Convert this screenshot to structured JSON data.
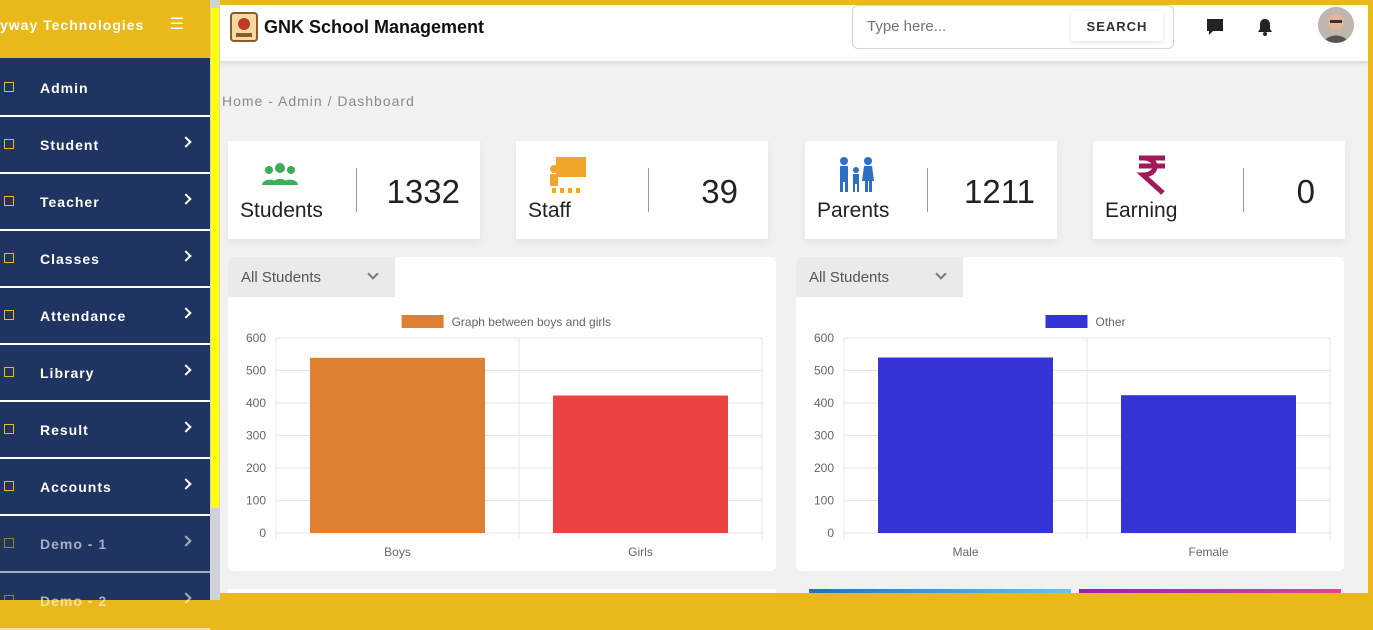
{
  "sidebar": {
    "brand": "yway Technologies",
    "items": [
      {
        "label": "Admin",
        "icon": "dashboard-icon",
        "chevron": false
      },
      {
        "label": "Student",
        "icon": "student-icon",
        "chevron": true
      },
      {
        "label": "Teacher",
        "icon": "teacher-icon",
        "chevron": true
      },
      {
        "label": "Classes",
        "icon": "classes-icon",
        "chevron": true
      },
      {
        "label": "Attendance",
        "icon": "attendance-icon",
        "chevron": true
      },
      {
        "label": "Library",
        "icon": "library-icon",
        "chevron": true
      },
      {
        "label": "Result",
        "icon": "result-icon",
        "chevron": true
      },
      {
        "label": "Accounts",
        "icon": "accounts-icon",
        "chevron": true
      },
      {
        "label": "Demo - 1",
        "icon": "demo-icon",
        "chevron": true
      },
      {
        "label": "Demo - 2",
        "icon": "demo-icon",
        "chevron": true
      }
    ]
  },
  "header": {
    "title": "GNK School Management",
    "search_placeholder": "Type here...",
    "search_button": "SEARCH"
  },
  "breadcrumb": "Home - Admin / Dashboard",
  "stats": [
    {
      "label": "Students",
      "value": "1332",
      "icon": "students-icon",
      "color": "#3eac58"
    },
    {
      "label": "Staff",
      "value": "39",
      "icon": "staff-icon",
      "color": "#f0a52b"
    },
    {
      "label": "Parents",
      "value": "1211",
      "icon": "parents-icon",
      "color": "#2d6fc4"
    },
    {
      "label": "Earning",
      "value": "0",
      "icon": "rupee-icon",
      "color": "#a3185a"
    }
  ],
  "filters": [
    {
      "label": "All Students"
    },
    {
      "label": "All Students"
    }
  ],
  "chart_data": [
    {
      "type": "bar",
      "categories": [
        "Boys",
        "Girls"
      ],
      "series": [
        {
          "name": "Graph between boys and girls",
          "values": [
            539,
            423
          ]
        }
      ],
      "bar_colors": [
        "#de7f31",
        "#ec4142"
      ],
      "ylim": [
        0,
        600
      ],
      "yticks": [
        "600",
        "500",
        "400",
        "300",
        "200",
        "100",
        "0"
      ],
      "grid": true,
      "legend": "top"
    },
    {
      "type": "bar",
      "categories": [
        "Male",
        "Female"
      ],
      "series": [
        {
          "name": "Other",
          "values": [
            540,
            424
          ]
        }
      ],
      "bar_colors": [
        "#3333d6",
        "#3333d6"
      ],
      "ylim": [
        0,
        600
      ],
      "yticks": [
        "600",
        "500",
        "400",
        "300",
        "200",
        "100",
        "0"
      ],
      "grid": true,
      "legend": "top"
    }
  ],
  "colors": {
    "accent": "#e9b81a",
    "sidebar": "#1f3460",
    "scroll_thumb": "#ffff00"
  }
}
